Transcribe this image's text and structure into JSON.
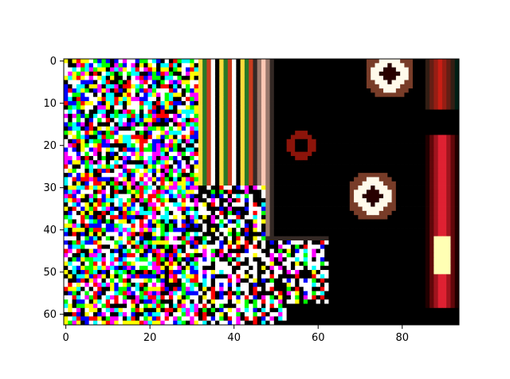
{
  "chart_data": {
    "type": "heatmap",
    "title": "",
    "xlabel": "",
    "ylabel": "",
    "image_shape": [
      63,
      94
    ],
    "x_ticks": [
      0,
      20,
      40,
      60,
      80
    ],
    "y_ticks": [
      0,
      10,
      20,
      30,
      40,
      50,
      60
    ],
    "x_tick_labels": [
      "0",
      "20",
      "40",
      "60",
      "80"
    ],
    "y_tick_labels": [
      "0",
      "10",
      "20",
      "30",
      "40",
      "50",
      "60"
    ],
    "xlim": [
      -0.5,
      93.5
    ],
    "ylim": [
      62.5,
      -0.5
    ],
    "grid": false,
    "legend": "none",
    "palette": [
      "#000000",
      "#ffffff",
      "#00ffff",
      "#ff00ff",
      "#ffff00",
      "#0000ff",
      "#00ff00",
      "#ff0000"
    ],
    "regions": [
      {
        "name": "left-noise-block",
        "x_range": [
          0,
          31
        ],
        "y_range": [
          0,
          62
        ],
        "pattern": "random primary/secondary colour noise"
      },
      {
        "name": "middle-noise-block",
        "x_range": [
          32,
          62
        ],
        "y_range": [
          30,
          62
        ],
        "pattern": "vertical stripes of colour noise"
      },
      {
        "name": "dark-region",
        "x_range": [
          45,
          93
        ],
        "y_range": [
          0,
          48
        ],
        "colour": "#000000"
      },
      {
        "name": "white-blob-top",
        "center": [
          77,
          3
        ]
      },
      {
        "name": "white-blob-center",
        "center": [
          73,
          32
        ]
      },
      {
        "name": "red-ring-small",
        "center": [
          56,
          20
        ]
      },
      {
        "name": "red-stripe-right",
        "x_range": [
          86,
          93
        ],
        "y_range": [
          18,
          58
        ]
      }
    ]
  }
}
